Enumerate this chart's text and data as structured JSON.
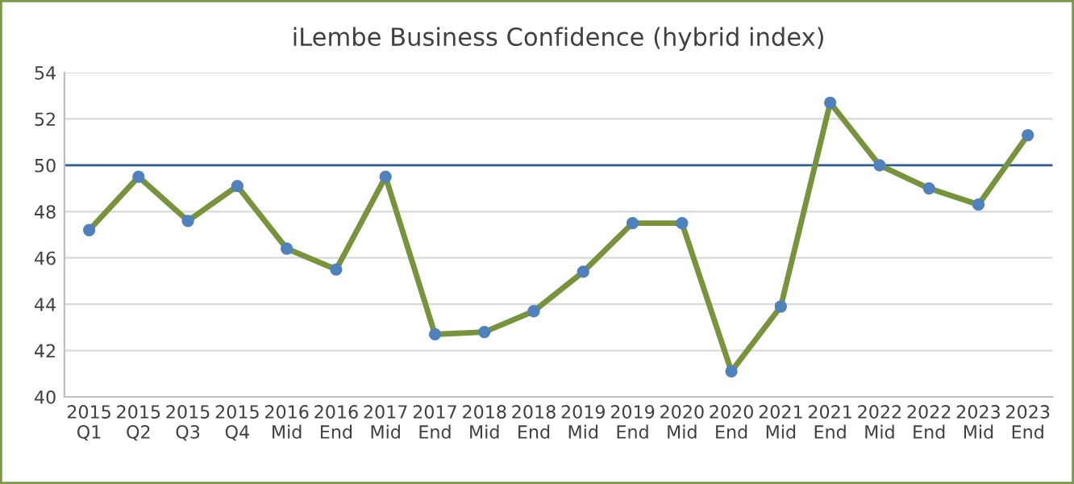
{
  "chart_data": {
    "type": "line",
    "title": "iLembe Business Confidence (hybrid index)",
    "categories": [
      "2015\nQ1",
      "2015\nQ2",
      "2015\nQ3",
      "2015\nQ4",
      "2016\nMid",
      "2016\nEnd",
      "2017\nMid",
      "2017\nEnd",
      "2018\nMid",
      "2018\nEnd",
      "2019\nMid",
      "2019\nEnd",
      "2020\nMid",
      "2020\nEnd",
      "2021\nMid",
      "2021\nEnd",
      "2022\nMid",
      "2022\nEnd",
      "2023\nMid",
      "2023\nEnd"
    ],
    "series": [
      {
        "color": "#77933c",
        "values": [
          47.2,
          49.5,
          47.6,
          49.1,
          46.4,
          45.5,
          49.5,
          42.7,
          42.8,
          43.7,
          45.4,
          47.5,
          47.5,
          41.1,
          43.9,
          52.7,
          50.0,
          49.0,
          48.3,
          51.3
        ]
      }
    ],
    "ylim": [
      40,
      54
    ],
    "yticks": [
      40,
      42,
      44,
      46,
      48,
      50,
      52,
      54
    ],
    "grid": "y",
    "marker": "circle",
    "line_style": "solid",
    "ref_lines": [
      {
        "axis": "y",
        "value": 50,
        "color": "#2e5f8f"
      }
    ]
  }
}
